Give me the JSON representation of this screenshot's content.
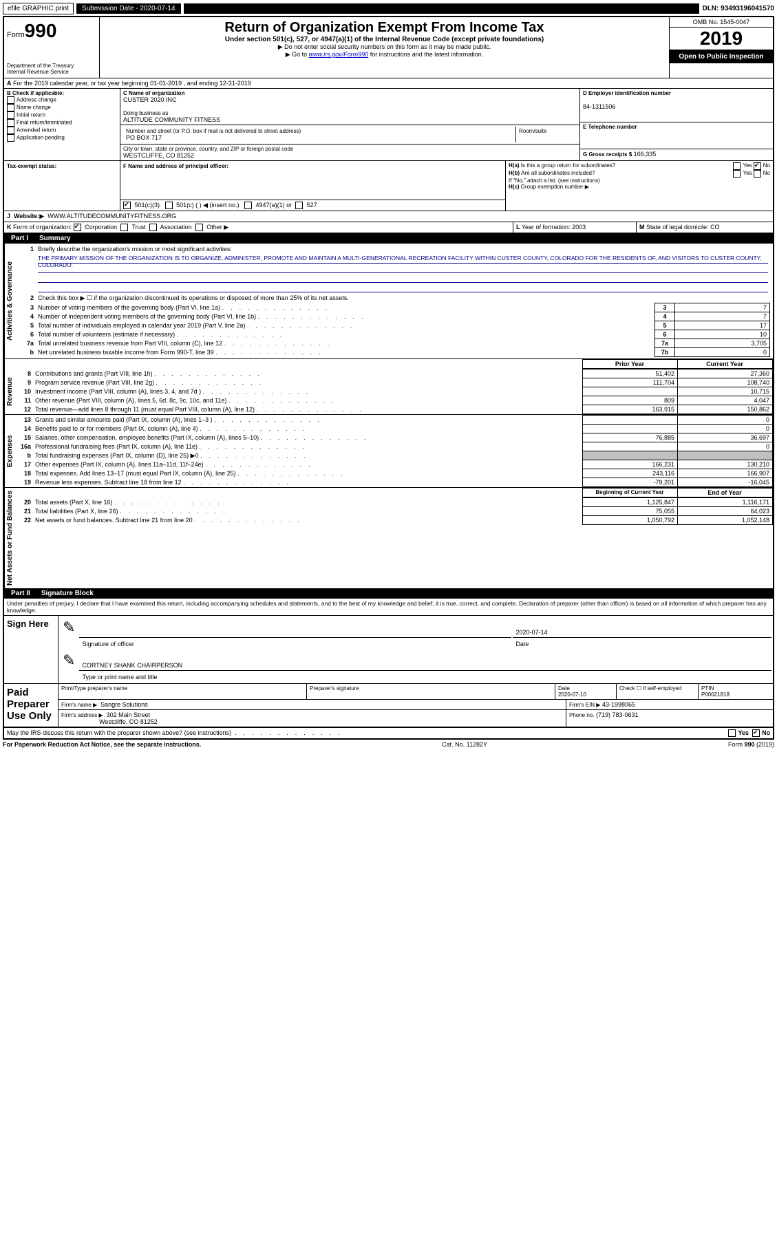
{
  "topbar": {
    "efile": "efile GRAPHIC print",
    "sub_label": "Submission Date - 2020-07-14",
    "dln": "DLN: 93493196041570"
  },
  "header": {
    "form_label": "Form",
    "form_num": "990",
    "dept": "Department of the Treasury",
    "irs": "Internal Revenue Service",
    "title": "Return of Organization Exempt From Income Tax",
    "sub1": "Under section 501(c), 527, or 4947(a)(1) of the Internal Revenue Code (except private foundations)",
    "sub2": "Do not enter social security numbers on this form as it may be made public.",
    "sub3_pre": "Go to ",
    "sub3_link": "www.irs.gov/Form990",
    "sub3_post": " for instructions and the latest information.",
    "omb": "OMB No. 1545-0047",
    "year": "2019",
    "public": "Open to Public Inspection"
  },
  "rowA": {
    "text": "For the 2019 calendar year, or tax year beginning 01-01-2019    , and ending 12-31-2019"
  },
  "colB": {
    "header": "B Check if applicable:",
    "opts": [
      "Address change",
      "Name change",
      "Initial return",
      "Final return/terminated",
      "Amended return",
      "Application pending"
    ]
  },
  "colC": {
    "name_label": "C Name of organization",
    "name": "CUSTER 2020 INC",
    "dba_label": "Doing business as",
    "dba": "ALTITUDE COMMUNITY FITNESS",
    "addr_label": "Number and street (or P.O. box if mail is not delivered to street address)",
    "room_label": "Room/suite",
    "addr": "PO BOX 717",
    "city_label": "City or town, state or province, country, and ZIP or foreign postal code",
    "city": "WESTCLIFFE, CO  81252",
    "f_label": "F Name and address of principal officer:"
  },
  "colD": {
    "d_label": "D Employer identification number",
    "ein": "84-1311506",
    "e_label": "E Telephone number",
    "g_label": "G Gross receipts $",
    "g_val": "166,335"
  },
  "hblock": {
    "h_a": "Is this a group return for subordinates?",
    "h_b": "Are all subordinates included?",
    "h_note": "If \"No,\" attach a list. (see instructions)",
    "h_c": "Group exemption number"
  },
  "tax_exempt": {
    "label": "Tax-exempt status:",
    "o1": "501(c)(3)",
    "o2": "501(c) (   ) ◀ (insert no.)",
    "o3": "4947(a)(1) or",
    "o4": "527"
  },
  "website": {
    "label": "Website:",
    "val": "WWW.ALTITUDECOMMUNITYFITNESS.ORG"
  },
  "rowK": {
    "k": "Form of organization:",
    "opts": [
      "Corporation",
      "Trust",
      "Association",
      "Other"
    ],
    "l": "Year of formation:",
    "l_val": "2003",
    "m": "State of legal domicile:",
    "m_val": "CO"
  },
  "part1": {
    "label": "Part I",
    "title": "Summary"
  },
  "mission": {
    "q": "Briefly describe the organization's mission or most significant activities:",
    "text": "THE PRIMARY MISSION OF THE ORGANIZATION IS TO ORGANIZE, ADMINISTER, PROMOTE AND MAINTAIN A MULTI-GENERATIONAL RECREATION FACILITY WITHIN CUSTER COUNTY, COLORADO FOR THE RESIDENTS OF, AND VISITORS TO CUSTER COUNTY, COLORADO."
  },
  "activities": {
    "l2": "Check this box ▶ ☐  if the organization discontinued its operations or disposed of more than 25% of its net assets.",
    "rows": [
      {
        "n": "3",
        "t": "Number of voting members of the governing body (Part VI, line 1a)",
        "box": "3",
        "v": "7"
      },
      {
        "n": "4",
        "t": "Number of independent voting members of the governing body (Part VI, line 1b)",
        "box": "4",
        "v": "7"
      },
      {
        "n": "5",
        "t": "Total number of individuals employed in calendar year 2019 (Part V, line 2a)",
        "box": "5",
        "v": "17"
      },
      {
        "n": "6",
        "t": "Total number of volunteers (estimate if necessary)",
        "box": "6",
        "v": "10"
      },
      {
        "n": "7a",
        "t": "Total unrelated business revenue from Part VIII, column (C), line 12",
        "box": "7a",
        "v": "3,705"
      },
      {
        "n": "b",
        "t": "Net unrelated business taxable income from Form 990-T, line 39",
        "box": "7b",
        "v": "0"
      }
    ]
  },
  "col_headers": {
    "prior": "Prior Year",
    "current": "Current Year"
  },
  "revenue": [
    {
      "n": "8",
      "t": "Contributions and grants (Part VIII, line 1h)",
      "p": "51,402",
      "c": "27,360"
    },
    {
      "n": "9",
      "t": "Program service revenue (Part VIII, line 2g)",
      "p": "111,704",
      "c": "108,740"
    },
    {
      "n": "10",
      "t": "Investment income (Part VIII, column (A), lines 3, 4, and 7d )",
      "p": "",
      "c": "10,715"
    },
    {
      "n": "11",
      "t": "Other revenue (Part VIII, column (A), lines 5, 6d, 8c, 9c, 10c, and 11e)",
      "p": "809",
      "c": "4,047"
    },
    {
      "n": "12",
      "t": "Total revenue—add lines 8 through 11 (must equal Part VIII, column (A), line 12)",
      "p": "163,915",
      "c": "150,862"
    }
  ],
  "expenses": [
    {
      "n": "13",
      "t": "Grants and similar amounts paid (Part IX, column (A), lines 1–3 )",
      "p": "",
      "c": "0"
    },
    {
      "n": "14",
      "t": "Benefits paid to or for members (Part IX, column (A), line 4)",
      "p": "",
      "c": "0"
    },
    {
      "n": "15",
      "t": "Salaries, other compensation, employee benefits (Part IX, column (A), lines 5–10)",
      "p": "76,885",
      "c": "36,697"
    },
    {
      "n": "16a",
      "t": "Professional fundraising fees (Part IX, column (A), line 11e)",
      "p": "",
      "c": "0"
    },
    {
      "n": "b",
      "t": "Total fundraising expenses (Part IX, column (D), line 25) ▶0",
      "p": "shade",
      "c": "shade"
    },
    {
      "n": "17",
      "t": "Other expenses (Part IX, column (A), lines 11a–11d, 11f–24e)",
      "p": "166,231",
      "c": "130,210"
    },
    {
      "n": "18",
      "t": "Total expenses. Add lines 13–17 (must equal Part IX, column (A), line 25)",
      "p": "243,116",
      "c": "166,907"
    },
    {
      "n": "19",
      "t": "Revenue less expenses. Subtract line 18 from line 12",
      "p": "-79,201",
      "c": "-16,045"
    }
  ],
  "na_headers": {
    "boy": "Beginning of Current Year",
    "eoy": "End of Year"
  },
  "netassets": [
    {
      "n": "20",
      "t": "Total assets (Part X, line 16)",
      "p": "1,125,847",
      "c": "1,116,171"
    },
    {
      "n": "21",
      "t": "Total liabilities (Part X, line 26)",
      "p": "75,055",
      "c": "64,023"
    },
    {
      "n": "22",
      "t": "Net assets or fund balances. Subtract line 21 from line 20",
      "p": "1,050,792",
      "c": "1,052,148"
    }
  ],
  "part2": {
    "label": "Part II",
    "title": "Signature Block"
  },
  "penalties": "Under penalties of perjury, I declare that I have examined this return, including accompanying schedules and statements, and to the best of my knowledge and belief, it is true, correct, and complete. Declaration of preparer (other than officer) is based on all information of which preparer has any knowledge.",
  "sign": {
    "here": "Sign Here",
    "sig_officer": "Signature of officer",
    "date": "Date",
    "date_val": "2020-07-14",
    "name": "CORTNEY SHANK CHAIRPERSON",
    "name_label": "Type or print name and title"
  },
  "paid": {
    "label": "Paid Preparer Use Only",
    "pt_name_label": "Print/Type preparer's name",
    "sig_label": "Preparer's signature",
    "pdate": "2020-07-10",
    "check_label": "Check ☐ if self-employed",
    "ptin_label": "PTIN",
    "ptin": "P00021818",
    "firm_label": "Firm's name ▶",
    "firm": "Sangre Solutions",
    "ein_label": "Firm's EIN ▶",
    "ein": "43-1998065",
    "addr_label": "Firm's address ▶",
    "addr1": "302 Main Street",
    "addr2": "Westcliffe, CO  81252",
    "phone_label": "Phone no.",
    "phone": "(719) 783-0631"
  },
  "discuss": "May the IRS discuss this return with the preparer shown above? (see instructions)",
  "footer": {
    "left": "For Paperwork Reduction Act Notice, see the separate instructions.",
    "mid": "Cat. No. 11282Y",
    "right": "Form 990 (2019)"
  },
  "labels": {
    "vert_ag": "Activities & Governance",
    "vert_rev": "Revenue",
    "vert_exp": "Expenses",
    "vert_na": "Net Assets or Fund Balances",
    "yes": "Yes",
    "no": "No"
  }
}
